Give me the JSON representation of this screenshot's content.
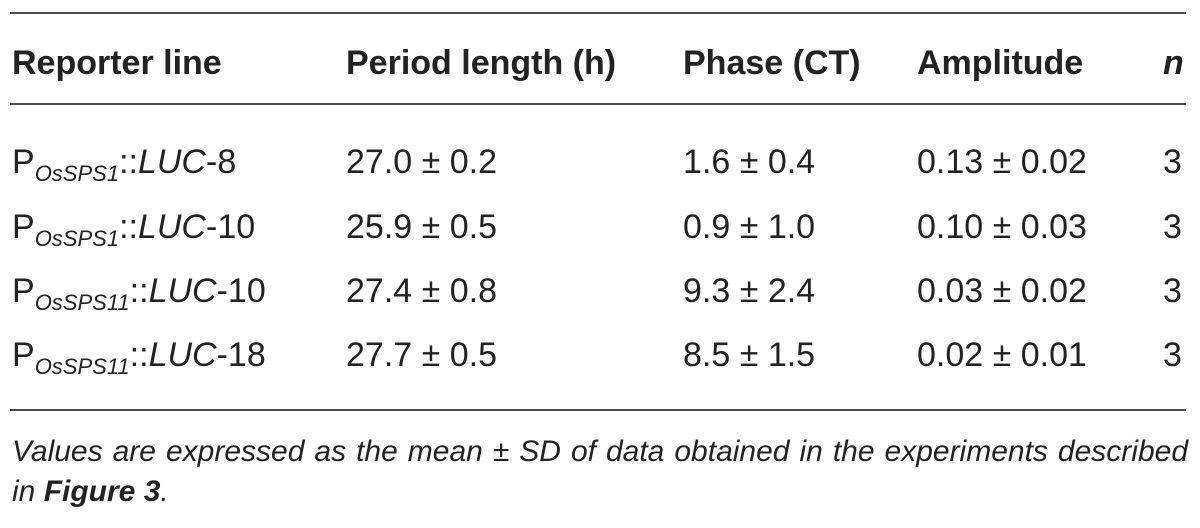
{
  "table": {
    "headers": [
      "Reporter line",
      "Period length (h)",
      "Phase (CT)",
      "Amplitude",
      "n"
    ],
    "rows": [
      {
        "line_prefix": "P",
        "line_sub": "OsSPS1",
        "line_sep": "::",
        "line_gene": "LUC",
        "line_suffix": "-8",
        "period": "27.0 ± 0.2",
        "phase": "1.6 ± 0.4",
        "amplitude": "0.13 ± 0.02",
        "n": "3"
      },
      {
        "line_prefix": "P",
        "line_sub": "OsSPS1",
        "line_sep": "::",
        "line_gene": "LUC",
        "line_suffix": "-10",
        "period": "25.9 ± 0.5",
        "phase": "0.9 ± 1.0",
        "amplitude": "0.10 ± 0.03",
        "n": "3"
      },
      {
        "line_prefix": "P",
        "line_sub": "OsSPS11",
        "line_sep": "::",
        "line_gene": "LUC",
        "line_suffix": "-10",
        "period": "27.4 ± 0.8",
        "phase": "9.3 ± 2.4",
        "amplitude": "0.03 ± 0.02",
        "n": "3"
      },
      {
        "line_prefix": "P",
        "line_sub": "OsSPS11",
        "line_sep": "::",
        "line_gene": "LUC",
        "line_suffix": "-18",
        "period": "27.7 ± 0.5",
        "phase": "8.5 ± 1.5",
        "amplitude": "0.02 ± 0.01",
        "n": "3"
      }
    ]
  },
  "footnote": {
    "text_before": "Values are expressed as the mean ± SD of data obtained in the experiments described in ",
    "bold_ref": "Figure 3",
    "text_after": "."
  }
}
